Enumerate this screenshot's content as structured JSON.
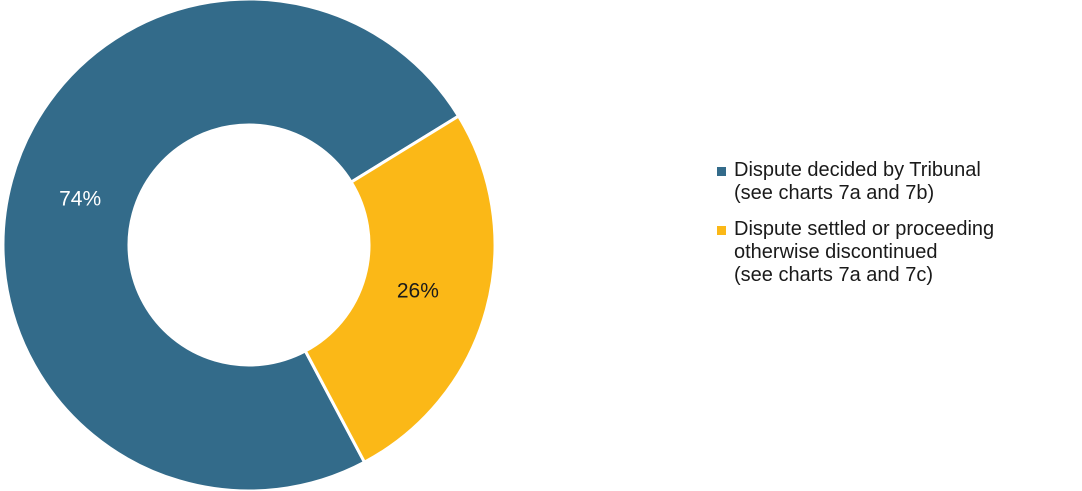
{
  "chart_data": {
    "type": "pie",
    "donut": true,
    "title": "",
    "slices": [
      {
        "value": 74,
        "label": "74%",
        "color": "#336b8a",
        "label_color": "#ffffff",
        "legend": [
          "Dispute decided by Tribunal",
          "(see charts 7a and 7b)"
        ]
      },
      {
        "value": 26,
        "label": "26%",
        "color": "#fbb817",
        "label_color": "#1a1a1a",
        "legend": [
          "Dispute settled or proceeding",
          "otherwise discontinued",
          "(see charts 7a and 7c)"
        ]
      }
    ],
    "legend_position": "right"
  }
}
